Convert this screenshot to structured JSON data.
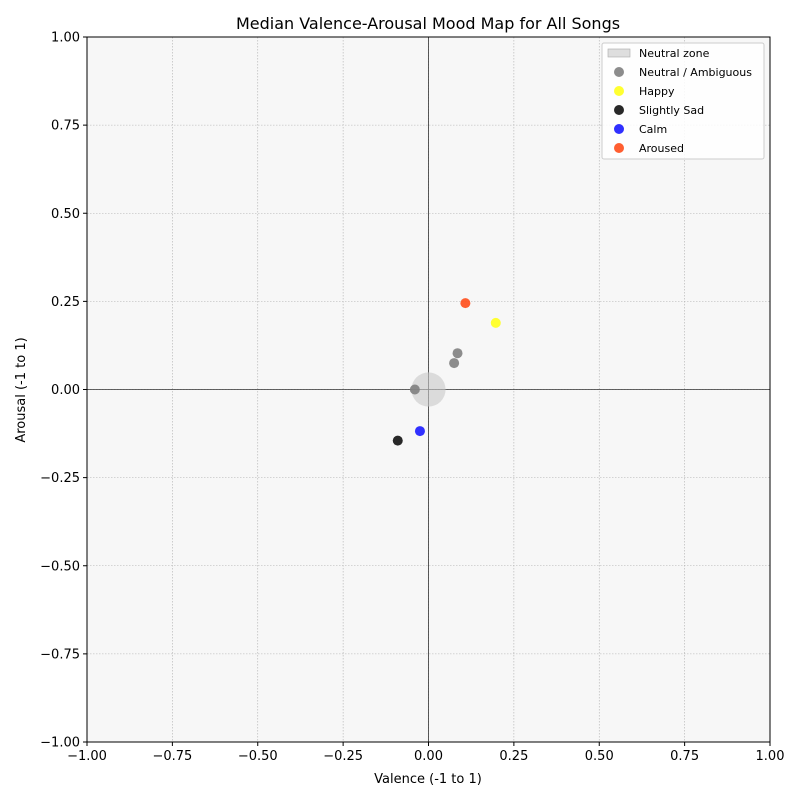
{
  "chart_data": {
    "type": "scatter",
    "title": "Median Valence-Arousal Mood Map for All Songs",
    "xlabel": "Valence (-1 to 1)",
    "ylabel": "Arousal (-1 to 1)",
    "xlim": [
      -1,
      1
    ],
    "ylim": [
      -1,
      1
    ],
    "xticks": [
      -1.0,
      -0.75,
      -0.5,
      -0.25,
      0.0,
      0.25,
      0.5,
      0.75,
      1.0
    ],
    "yticks": [
      -1.0,
      -0.75,
      -0.5,
      -0.25,
      0.0,
      0.25,
      0.5,
      0.75,
      1.0
    ],
    "xtick_labels": [
      "−1.00",
      "−0.75",
      "−0.50",
      "−0.25",
      "0.00",
      "0.25",
      "0.50",
      "0.75",
      "1.00"
    ],
    "ytick_labels": [
      "−1.00",
      "−0.75",
      "−0.50",
      "−0.25",
      "0.00",
      "0.25",
      "0.50",
      "0.75",
      "1.00"
    ],
    "grid": true,
    "legend_position": "top-right",
    "background_color": "#f7f7f7",
    "neutral_zone": {
      "label": "Neutral zone",
      "center": [
        0,
        0
      ],
      "radius": 0.05,
      "color": "#c8c8c8"
    },
    "series": [
      {
        "name": "Neutral / Ambiguous",
        "color": "#808080",
        "points": [
          [
            -0.04,
            0.0
          ],
          [
            0.075,
            0.075
          ],
          [
            0.085,
            0.103
          ]
        ]
      },
      {
        "name": "Happy",
        "color": "#ffff1a",
        "points": [
          [
            0.197,
            0.189
          ]
        ]
      },
      {
        "name": "Slightly Sad",
        "color": "#111111",
        "points": [
          [
            -0.09,
            -0.145
          ]
        ]
      },
      {
        "name": "Calm",
        "color": "#1a1aff",
        "points": [
          [
            -0.025,
            -0.118
          ]
        ]
      },
      {
        "name": "Aroused",
        "color": "#ff4d1a",
        "points": [
          [
            0.108,
            0.245
          ]
        ]
      }
    ]
  }
}
